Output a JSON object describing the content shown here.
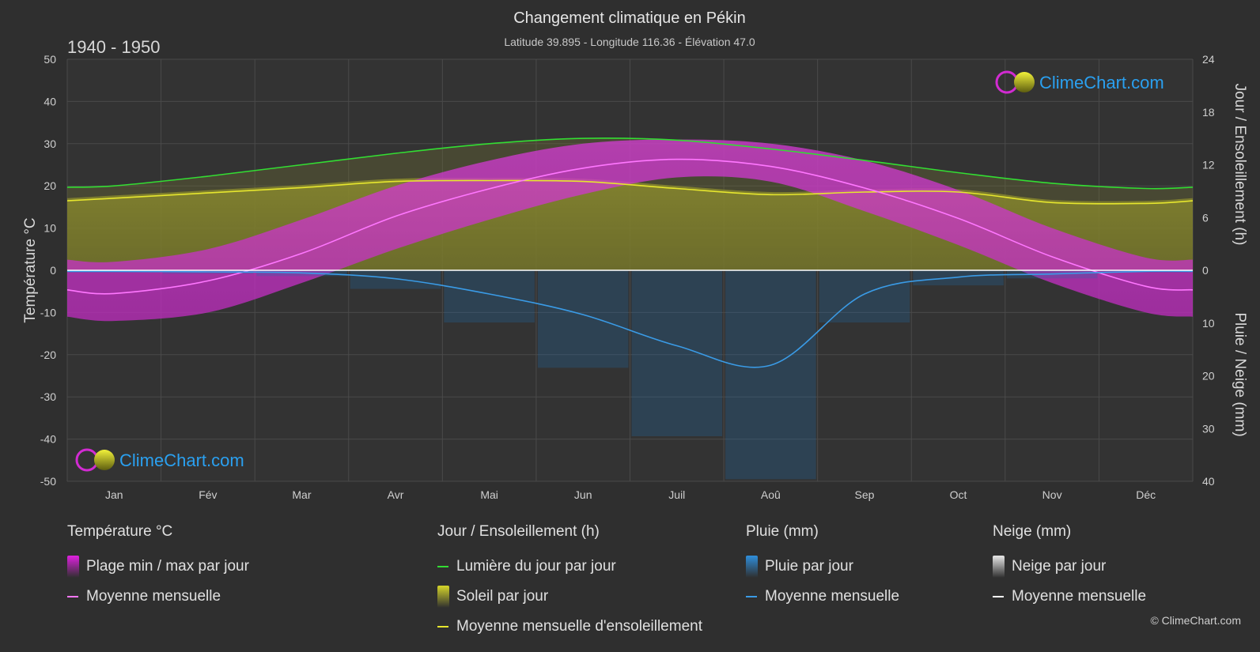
{
  "chart_data": {
    "type": "area",
    "title": "Changement climatique en Pékin",
    "subtitle": "Latitude 39.895 - Longitude 116.36 - Élévation 47.0",
    "period": "1940 - 1950",
    "brand": "ClimeChart.com",
    "copyright": "© ClimeChart.com",
    "ylabel_left": "Température °C",
    "ylabel_right_top": "Jour / Ensoleillement (h)",
    "ylabel_right_bottom": "Pluie / Neige (mm)",
    "ylim_left": [
      -50,
      50
    ],
    "yticks_left": [
      "50",
      "40",
      "30",
      "20",
      "10",
      "0",
      "-10",
      "-20",
      "-30",
      "-40",
      "-50"
    ],
    "yticks_right_top": [
      "24",
      "18",
      "12",
      "6",
      "0"
    ],
    "yticks_right_bottom": [
      "10",
      "20",
      "30",
      "40"
    ],
    "categories": [
      "Jan",
      "Fév",
      "Mar",
      "Avr",
      "Mai",
      "Jun",
      "Juil",
      "Aoû",
      "Sep",
      "Oct",
      "Nov",
      "Déc"
    ],
    "series": [
      {
        "name": "Moyenne mensuelle",
        "key": "temp_mean",
        "unit": "°C",
        "values": [
          -5.5,
          -2.5,
          4,
          12.8,
          19.3,
          24.2,
          26.3,
          24.6,
          19.5,
          12.3,
          3.2,
          -3.8
        ]
      },
      {
        "name": "Plage min / max par jour",
        "key": "temp_max",
        "unit": "°C",
        "values": [
          2,
          5,
          12,
          20,
          26,
          30,
          31,
          30,
          26,
          19,
          10,
          3
        ]
      },
      {
        "name": "Plage min / max par jour",
        "key": "temp_min",
        "unit": "°C",
        "values": [
          -12,
          -10,
          -3,
          5,
          12,
          18,
          22,
          21,
          14,
          6,
          -3,
          -10
        ]
      },
      {
        "name": "Lumière du jour par jour",
        "key": "daylight",
        "unit": "h",
        "values": [
          9.6,
          10.7,
          12.0,
          13.3,
          14.4,
          15.0,
          14.8,
          13.8,
          12.5,
          11.1,
          9.9,
          9.3
        ]
      },
      {
        "name": "Moyenne mensuelle d'ensoleillement",
        "key": "sunshine",
        "unit": "h",
        "values": [
          8.2,
          8.8,
          9.4,
          10.1,
          10.2,
          10.1,
          9.3,
          8.6,
          8.9,
          8.9,
          7.7,
          7.6
        ]
      },
      {
        "name": "Moyenne mensuelle",
        "key": "rain",
        "unit": "mm",
        "values": [
          0.2,
          0.3,
          0.5,
          1.6,
          4.5,
          8.4,
          14.3,
          18.0,
          4.5,
          1.3,
          0.7,
          0.2
        ]
      }
    ],
    "legend": {
      "groups": [
        {
          "title": "Température °C",
          "items": [
            {
              "label": "Plage min / max par jour",
              "swatch": "box",
              "color": "#e020e0"
            },
            {
              "label": "Moyenne mensuelle",
              "swatch": "line",
              "color": "#ff77ff"
            }
          ]
        },
        {
          "title": "Jour / Ensoleillement (h)",
          "items": [
            {
              "label": "Lumière du jour par jour",
              "swatch": "line",
              "color": "#33dd33"
            },
            {
              "label": "Soleil par jour",
              "swatch": "box",
              "color": "#d6d62a"
            },
            {
              "label": "Moyenne mensuelle d'ensoleillement",
              "swatch": "line",
              "color": "#e6e62e"
            }
          ]
        },
        {
          "title": "Pluie (mm)",
          "items": [
            {
              "label": "Pluie par jour",
              "swatch": "box",
              "color": "#2f8fdc"
            },
            {
              "label": "Moyenne mensuelle",
              "swatch": "line",
              "color": "#3a9be6"
            }
          ]
        },
        {
          "title": "Neige (mm)",
          "items": [
            {
              "label": "Neige par jour",
              "swatch": "box",
              "color": "#e8e8e8"
            },
            {
              "label": "Moyenne mensuelle",
              "swatch": "line",
              "color": "#ffffff"
            }
          ]
        }
      ]
    }
  }
}
